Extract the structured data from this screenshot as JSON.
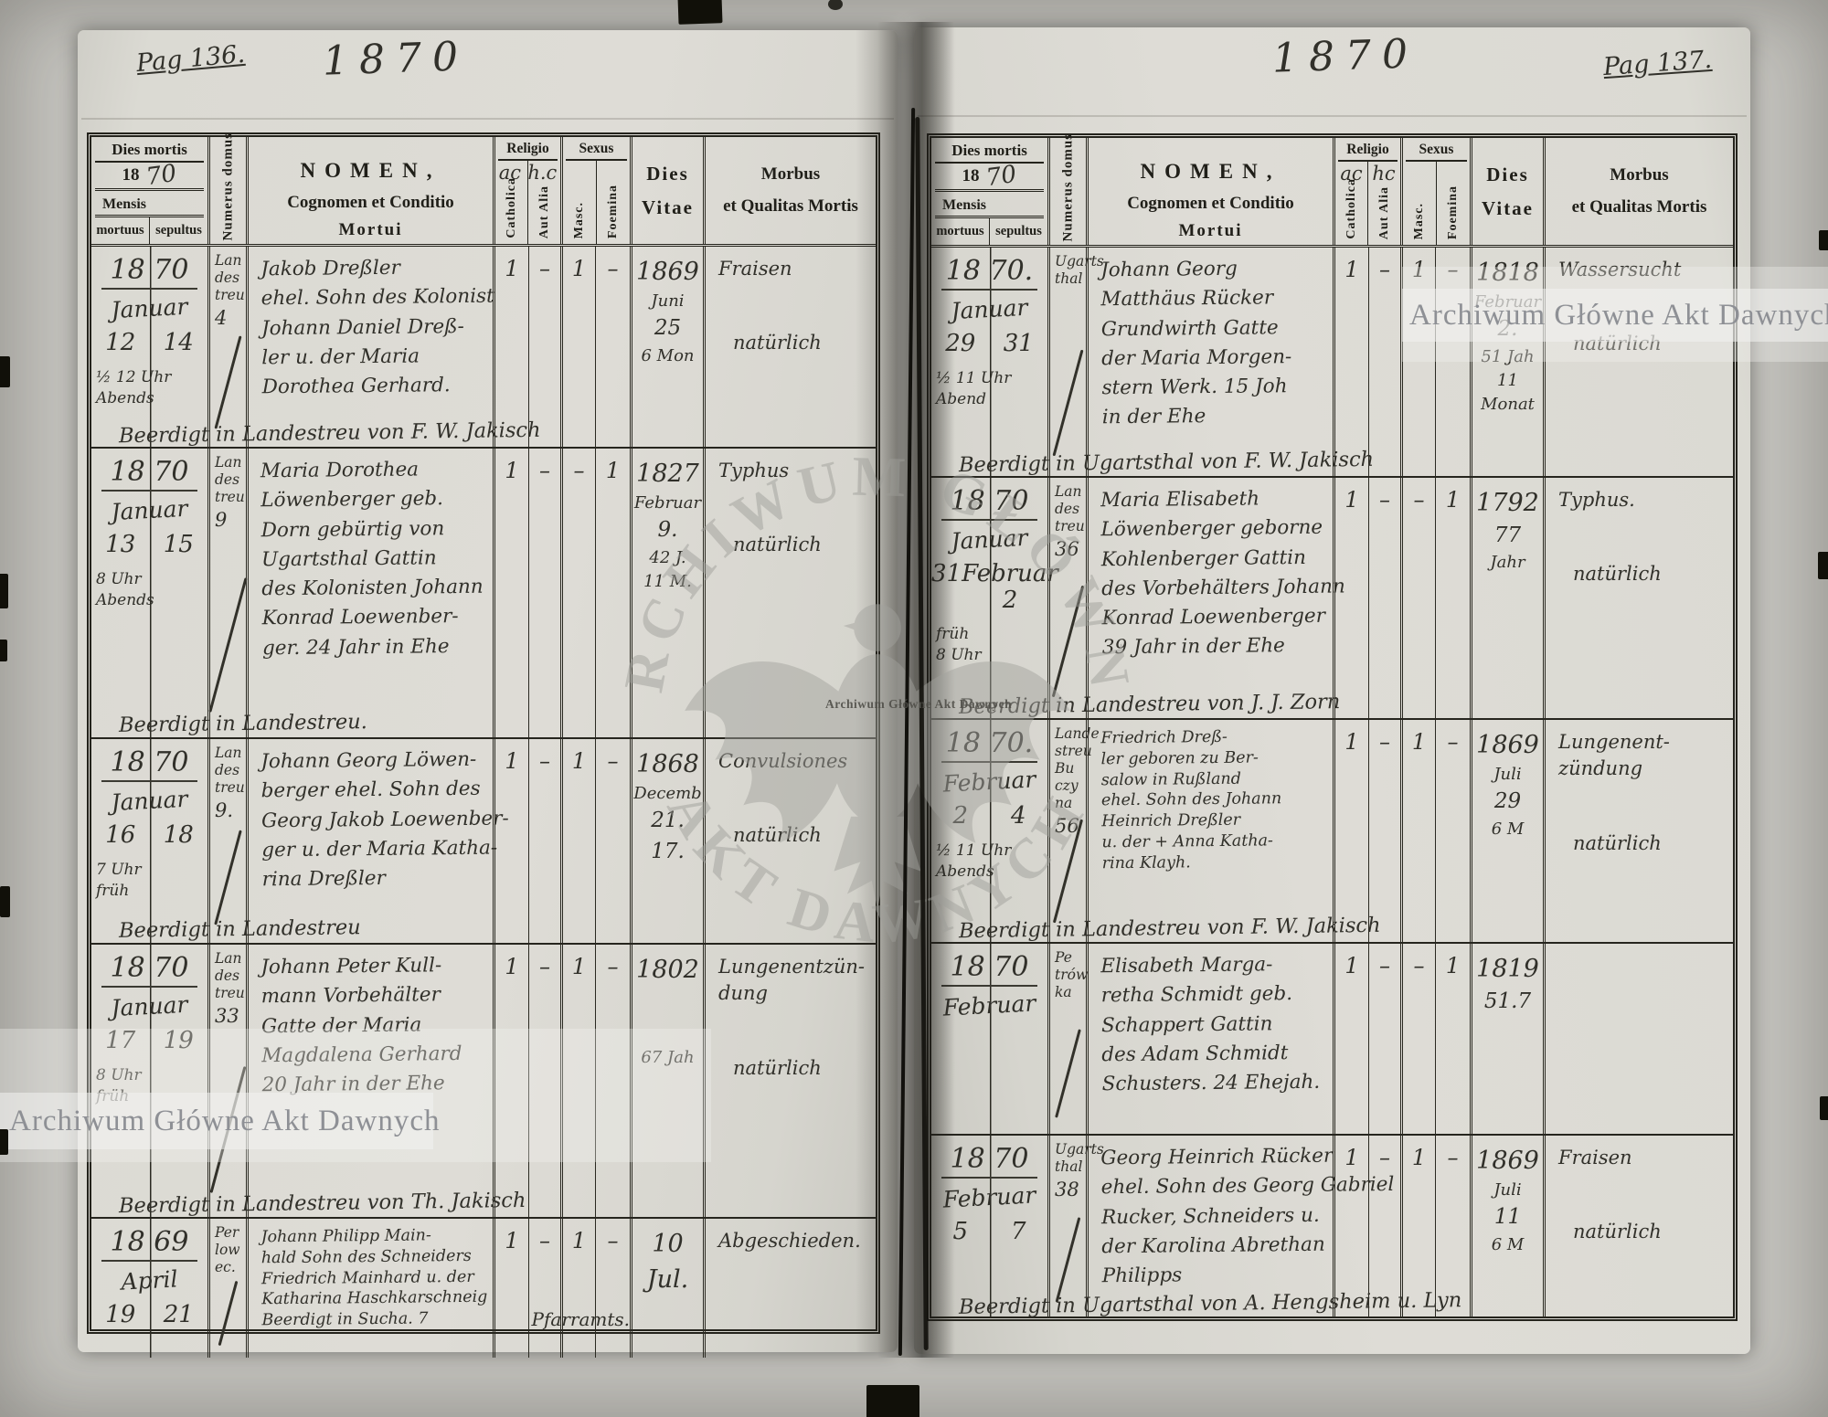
{
  "colors": {
    "paper": "#dedcd6",
    "backing": "#c3c2bd",
    "ink_printed": "#24231c",
    "ink_handwriting": "#31302a",
    "watermark_gray": "#9e9e99"
  },
  "watermarks": {
    "band_text": "Archiwum Główne Akt Dawnych",
    "caption": "Archiwum Główne Akt Dawnych",
    "arc_top": "ARCHIWUM GŁÓWNE",
    "arc_bottom": "AKT DAWNYCH"
  },
  "header": {
    "dies_mortis": "Dies mortis",
    "year_printed": "18",
    "year_hand": "70",
    "mensis": "Mensis",
    "mortuus": "mortuus",
    "sepultus": "sepultus",
    "numerus_domus": "Numerus domus",
    "nomen_line1": "NOMEN,",
    "nomen_line2": "Cognomen et Conditio",
    "nomen_line3": "Mortui",
    "religio": "Religio",
    "catholica": "Catholica",
    "aut_alia": "Aut Alia",
    "sexus": "Sexus",
    "masc": "Masc.",
    "foemina": "Foemina",
    "dies_vitae_line1": "Dies",
    "dies_vitae_line2": "Vitae",
    "morbus_line1": "Morbus",
    "morbus_line2": "et Qualitas Mortis"
  },
  "left_page": {
    "page_number": "Pag 136.",
    "year_heading": "1870",
    "religio_note1": "ac",
    "religio_note2": "h.c",
    "entries": [
      {
        "year": "18 70",
        "month": "Januar",
        "day_mortuus": "12",
        "day_sepultus": "14",
        "time": [
          "½ 12 Uhr",
          "Abends"
        ],
        "house": [
          "Lan",
          "des",
          "treu",
          "4"
        ],
        "name_lines": [
          "Jakob Dreßler",
          "ehel. Sohn des Kolonist",
          "Johann Daniel Dreß-",
          "ler u. der Maria",
          "Dorothea Gerhard."
        ],
        "burial": "Beerdigt in Landestreu von F. W. Jakisch",
        "note": "",
        "catholica": "1",
        "aut_alia": "–",
        "masc": "1",
        "foemina": "–",
        "vitae": [
          "1869",
          "Juni",
          "25",
          "6 Mon"
        ],
        "morbus": [
          "Fraisen",
          "natürlich"
        ]
      },
      {
        "year": "18 70",
        "month": "Januar",
        "day_mortuus": "13",
        "day_sepultus": "15",
        "time": [
          "8 Uhr",
          "Abends"
        ],
        "house": [
          "Lan",
          "des",
          "treu",
          "9"
        ],
        "name_lines": [
          "Maria Dorothea",
          "Löwenberger geb.",
          "Dorn gebürtig von",
          "Ugartsthal Gattin",
          "des Kolonisten Johann",
          "Konrad Loewenber-",
          "ger. 24 Jahr in Ehe"
        ],
        "burial": "Beerdigt in Landestreu.",
        "note": "",
        "catholica": "1",
        "aut_alia": "–",
        "masc": "–",
        "foemina": "1",
        "vitae": [
          "1827",
          "Februar",
          "9.",
          "42 J.",
          "11 M."
        ],
        "morbus": [
          "Typhus",
          "natürlich"
        ]
      },
      {
        "year": "18 70",
        "month": "Januar",
        "day_mortuus": "16",
        "day_sepultus": "18",
        "time": [
          "7 Uhr",
          "früh"
        ],
        "house": [
          "Lan",
          "des",
          "treu",
          "9."
        ],
        "name_lines": [
          "Johann Georg Löwen-",
          "berger ehel. Sohn des",
          "Georg Jakob Loewenber-",
          "ger u. der Maria Katha-",
          "rina Dreßler"
        ],
        "burial": "Beerdigt in Landestreu",
        "note": "",
        "catholica": "1",
        "aut_alia": "–",
        "masc": "1",
        "foemina": "–",
        "vitae": [
          "1868",
          "Decemb",
          "21.",
          "17."
        ],
        "morbus": [
          "Convulsiones",
          "natürlich"
        ]
      },
      {
        "year": "18 70",
        "month": "Januar",
        "day_mortuus": "17",
        "day_sepultus": "19",
        "time": [
          "8 Uhr",
          "früh"
        ],
        "house": [
          "Lan",
          "des",
          "treu",
          "33"
        ],
        "name_lines": [
          "Johann Peter Kull-",
          "mann Vorbehälter",
          "Gatte der Maria",
          "Magdalena Gerhard",
          "20 Jahr in der Ehe"
        ],
        "burial": "Beerdigt in Landestreu von Th. Jakisch",
        "note": "",
        "catholica": "1",
        "aut_alia": "–",
        "masc": "1",
        "foemina": "–",
        "vitae": [
          "1802",
          "67 Jah"
        ],
        "morbus": [
          "Lungenentzün-",
          "dung",
          "natürlich"
        ]
      },
      {
        "year": "18 69",
        "month": "April",
        "day_mortuus": "19",
        "day_sepultus": "21",
        "time": [],
        "house": [
          "Per",
          "low",
          "ec."
        ],
        "name_lines": [
          "Johann Philipp Main-",
          "hald Sohn des Schneiders",
          "Friedrich Mainhard u. der",
          "Katharina Haschkarschneig",
          "Beerdigt in Sucha. 7"
        ],
        "burial": "",
        "note": "Pfarramts.",
        "catholica": "1",
        "aut_alia": "–",
        "masc": "1",
        "foemina": "–",
        "vitae": [
          "10 Jul."
        ],
        "morbus": [
          "Abgeschieden."
        ]
      }
    ]
  },
  "right_page": {
    "page_number": "Pag 137.",
    "year_heading": "1870",
    "religio_note1": "ac",
    "religio_note2": "hc",
    "entries": [
      {
        "year": "18 70.",
        "month": "Januar",
        "day_mortuus": "29",
        "day_sepultus": "31",
        "time": [
          "½ 11 Uhr",
          "Abend"
        ],
        "house": [
          "Ugarts",
          "thal"
        ],
        "name_lines": [
          "Johann Georg",
          "Matthäus Rücker",
          "Grundwirth Gatte",
          "der Maria Morgen-",
          "stern Werk. 15 Joh",
          "in der Ehe"
        ],
        "burial": "Beerdigt in Ugartsthal von F. W. Jakisch",
        "note": "",
        "catholica": "1",
        "aut_alia": "–",
        "masc": "1",
        "foemina": "–",
        "vitae": [
          "1818",
          "Februar",
          "2.",
          "51 Jah",
          "11 Monat"
        ],
        "morbus": [
          "Wassersucht",
          "natürlich"
        ]
      },
      {
        "year": "18 70",
        "month": "Januar",
        "day_mortuus": "31",
        "day_sepultus": "Februar 2",
        "time": [
          "früh",
          "8 Uhr"
        ],
        "house": [
          "Lan",
          "des",
          "treu",
          "36"
        ],
        "name_lines": [
          "Maria Elisabeth",
          "Löwenberger geborne",
          "Kohlenberger Gattin",
          "des Vorbehälters Johann",
          "Konrad Loewenberger",
          "39 Jahr in der Ehe"
        ],
        "burial": "Beerdigt in Landestreu von J. J. Zorn",
        "note": "",
        "catholica": "1",
        "aut_alia": "–",
        "masc": "–",
        "foemina": "1",
        "vitae": [
          "1792",
          "77",
          "Jahr"
        ],
        "morbus": [
          "Typhus.",
          "natürlich"
        ]
      },
      {
        "year": "18 70.",
        "month": "Februar",
        "day_mortuus": "2",
        "day_sepultus": "4",
        "time": [
          "½ 11 Uhr",
          "Abends"
        ],
        "house": [
          "Lande",
          "streu",
          "Bu",
          "czy",
          "na",
          "56"
        ],
        "name_lines": [
          "Friedrich Dreß-",
          "ler geboren zu Ber-",
          "salow in Rußland",
          "ehel. Sohn des Johann",
          "Heinrich Dreßler",
          "u. der + Anna Katha-",
          "rina Klayh."
        ],
        "burial": "Beerdigt in Landestreu von F. W. Jakisch",
        "note": "",
        "catholica": "1",
        "aut_alia": "–",
        "masc": "1",
        "foemina": "–",
        "vitae": [
          "1869",
          "Juli",
          "29",
          "6 M"
        ],
        "morbus": [
          "Lungenent-",
          "zündung",
          "natürlich"
        ]
      },
      {
        "year": "18 70",
        "month": "Februar",
        "day_mortuus": "",
        "day_sepultus": "",
        "time": [],
        "house": [
          "Pe",
          "trów",
          "ka"
        ],
        "name_lines": [
          "Elisabeth Marga-",
          "retha Schmidt geb.",
          "Schappert Gattin",
          "des Adam Schmidt",
          "Schusters. 24 Ehejah."
        ],
        "burial": "",
        "note": "",
        "catholica": "1",
        "aut_alia": "–",
        "masc": "–",
        "foemina": "1",
        "vitae": [
          "1819",
          "51.7"
        ],
        "morbus": []
      },
      {
        "year": "18 70",
        "month": "Februar",
        "day_mortuus": "5",
        "day_sepultus": "7",
        "time": [],
        "house": [
          "Ugarts",
          "thal",
          "38"
        ],
        "name_lines": [
          "Georg Heinrich Rücker",
          "ehel. Sohn des Georg Gabriel",
          "Rucker, Schneiders u.",
          "der Karolina Abrethan",
          "Philipps"
        ],
        "burial": "Beerdigt in Ugartsthal von A. Hengsheim u. Lyn",
        "note": "",
        "catholica": "1",
        "aut_alia": "–",
        "masc": "1",
        "foemina": "–",
        "vitae": [
          "1869",
          "Juli",
          "11",
          "6 M"
        ],
        "morbus": [
          "Fraisen",
          "natürlich"
        ]
      }
    ]
  }
}
